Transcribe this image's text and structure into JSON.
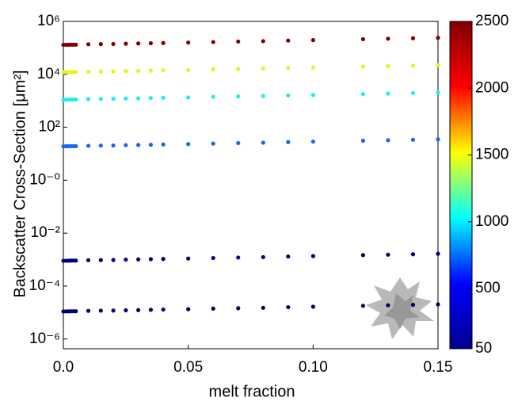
{
  "chart_data": {
    "type": "scatter",
    "xlabel": "melt fraction",
    "ylabel": "Backscatter Cross-Section [μm²]",
    "x": [
      0,
      0.001,
      0.002,
      0.003,
      0.004,
      0.005,
      0.01,
      0.015,
      0.02,
      0.025,
      0.03,
      0.035,
      0.04,
      0.05,
      0.06,
      0.07,
      0.08,
      0.09,
      0.1,
      0.12,
      0.13,
      0.14,
      0.15
    ],
    "series": [
      {
        "color": "#800000",
        "values": [
          130000,
          131000,
          131000,
          132000,
          132000,
          132000,
          137000,
          139000,
          140000,
          144000,
          147000,
          150000,
          153000,
          159000,
          166000,
          173000,
          179000,
          189000,
          196000,
          213000,
          222000,
          231000,
          240000
        ]
      },
      {
        "color": "#e8f21c",
        "values": [
          12000,
          12100,
          12100,
          12200,
          12200,
          12200,
          12600,
          12800,
          13000,
          13300,
          13600,
          13800,
          14200,
          14600,
          15400,
          16000,
          16600,
          17400,
          18100,
          19700,
          20500,
          21400,
          22200
        ]
      },
      {
        "color": "#1cf0ea",
        "values": [
          1100,
          1110,
          1110,
          1120,
          1120,
          1120,
          1160,
          1180,
          1190,
          1220,
          1240,
          1270,
          1300,
          1340,
          1410,
          1460,
          1520,
          1600,
          1660,
          1800,
          1880,
          1960,
          2040
        ]
      },
      {
        "color": "#1a66f2",
        "values": [
          19,
          19.2,
          19.2,
          19.4,
          19.4,
          19.4,
          20,
          20.3,
          20.5,
          21.1,
          21.5,
          21.9,
          22.4,
          23.2,
          24.3,
          25.3,
          26.2,
          27.6,
          28.7,
          31.2,
          32.5,
          33.8,
          35.2
        ]
      },
      {
        "color": "#00007a",
        "values": [
          0.0009,
          0.00091,
          0.00091,
          0.00092,
          0.00092,
          0.00092,
          0.00095,
          0.00096,
          0.00097,
          0.001,
          0.00102,
          0.00104,
          0.00106,
          0.0011,
          0.00115,
          0.0012,
          0.00124,
          0.00131,
          0.00136,
          0.00148,
          0.00154,
          0.0016,
          0.00167
        ]
      },
      {
        "color": "#000066",
        "values": [
          1.1e-05,
          1.11e-05,
          1.11e-05,
          1.12e-05,
          1.12e-05,
          1.12e-05,
          1.16e-05,
          1.18e-05,
          1.19e-05,
          1.22e-05,
          1.24e-05,
          1.27e-05,
          1.3e-05,
          1.34e-05,
          1.41e-05,
          1.46e-05,
          1.52e-05,
          1.6e-05,
          1.66e-05,
          1.8e-05,
          1.88e-05,
          1.96e-05,
          2.04e-05
        ]
      }
    ],
    "xlim": [
      0,
      0.15
    ],
    "xticks": [
      {
        "value": 0,
        "label": "0.0"
      },
      0.05,
      {
        "value": 0.1,
        "label": "0.10"
      },
      0.15
    ],
    "ylog": true,
    "ylim": [
      4.3e-07,
      1000000
    ],
    "yticks": [
      {
        "value": 1e-06,
        "label": "10⁻⁶"
      },
      {
        "value": 0.0001,
        "label": "10⁻⁴"
      },
      {
        "value": 0.01,
        "label": "10⁻²"
      },
      {
        "value": 1,
        "label": "10⁻⁰"
      },
      {
        "value": 100,
        "label": "10²"
      },
      {
        "value": 10000,
        "label": "10⁴"
      },
      {
        "value": 1000000,
        "label": "10⁶"
      }
    ],
    "colorbar": {
      "clim": [
        50,
        2500
      ],
      "ticks": [
        50,
        500,
        1000,
        1500,
        2000,
        2500
      ],
      "colors": [
        "#00008f",
        "#0000ff",
        "#00ffff",
        "#ffff00",
        "#ff0000",
        "#800000"
      ]
    }
  }
}
